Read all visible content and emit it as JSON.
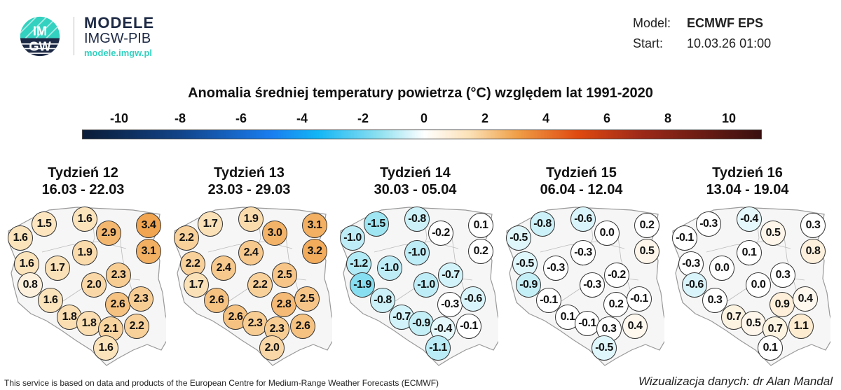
{
  "brand": {
    "name": "MODELE",
    "org": "IMGW-PIB",
    "url": "modele.imgw.pl",
    "logo_text": "IMGW",
    "colors": {
      "teal": "#33d1c0",
      "navy": "#1e2a45"
    }
  },
  "header": {
    "model_label": "Model:",
    "model_value": "ECMWF EPS",
    "start_label": "Start:",
    "start_value": "10.03.26 01:00"
  },
  "title": "Anomalia średniej temperatury powietrza (°C) względem lat 1991-2020",
  "colorbar": {
    "ticks": [
      "-10",
      "-8",
      "-6",
      "-4",
      "-2",
      "0",
      "2",
      "4",
      "6",
      "8",
      "10"
    ],
    "stops": [
      [
        -11,
        "#0b1f3c"
      ],
      [
        -8,
        "#12448a"
      ],
      [
        -5,
        "#1a7ef0"
      ],
      [
        -3.5,
        "#12b6f5"
      ],
      [
        -1.5,
        "#8ee0f0"
      ],
      [
        0,
        "#ffffff"
      ],
      [
        1.5,
        "#fbe0b4"
      ],
      [
        3,
        "#f0a048"
      ],
      [
        5,
        "#e04a10"
      ],
      [
        7,
        "#a02a18"
      ],
      [
        11,
        "#3a1010"
      ]
    ]
  },
  "weeks": [
    {
      "label": "Tydzień 12",
      "dates": "16.03 - 22.03",
      "values": [
        "1.5",
        "1.6",
        "1.6",
        "2.9",
        "3.4",
        "3.1",
        "1.9",
        "1.6",
        "1.7",
        "0.8",
        "2.0",
        "2.3",
        "2.6",
        "2.3",
        "1.6",
        "1.8",
        "1.8",
        "2.1",
        "2.2",
        "1.6"
      ]
    },
    {
      "label": "Tydzień 13",
      "dates": "23.03 - 29.03",
      "values": [
        "1.7",
        "1.9",
        "2.2",
        "3.0",
        "3.1",
        "3.2",
        "2.4",
        "2.2",
        "2.4",
        "1.7",
        "2.2",
        "2.5",
        "2.8",
        "2.5",
        "2.6",
        "2.6",
        "2.3",
        "2.3",
        "2.6",
        "2.0"
      ]
    },
    {
      "label": "Tydzień 14",
      "dates": "30.03 - 05.04",
      "values": [
        "-1.5",
        "-0.8",
        "-1.0",
        "-0.2",
        "0.1",
        "0.2",
        "-1.0",
        "-1.2",
        "-1.0",
        "-1.9",
        "-1.0",
        "-0.7",
        "-0.3",
        "-0.6",
        "-0.8",
        "-0.7",
        "-0.9",
        "-0.4",
        "-0.1",
        "-1.1"
      ]
    },
    {
      "label": "Tydzień 15",
      "dates": "06.04 - 12.04",
      "values": [
        "-0.8",
        "-0.6",
        "-0.5",
        "0.0",
        "0.2",
        "0.5",
        "-0.3",
        "-0.5",
        "-0.3",
        "-0.9",
        "-0.3",
        "-0.2",
        "0.2",
        "-0.1",
        "-0.1",
        "0.1",
        "-0.1",
        "0.3",
        "0.4",
        "-0.5"
      ]
    },
    {
      "label": "Tydzień 16",
      "dates": "13.04 - 19.04",
      "values": [
        "-0.3",
        "-0.4",
        "-0.1",
        "0.5",
        "0.3",
        "0.8",
        "0.1",
        "-0.3",
        "0.0",
        "-0.6",
        "0.0",
        "0.3",
        "0.9",
        "0.4",
        "0.3",
        "0.7",
        "0.5",
        "0.7",
        "1.1",
        "0.1"
      ]
    }
  ],
  "footer": {
    "left": "This service is based on data and products of the European Centre for Medium-Range Weather Forecasts (ECMWF)",
    "right": "Wizualizacja danych: dr Alan Mandal"
  }
}
